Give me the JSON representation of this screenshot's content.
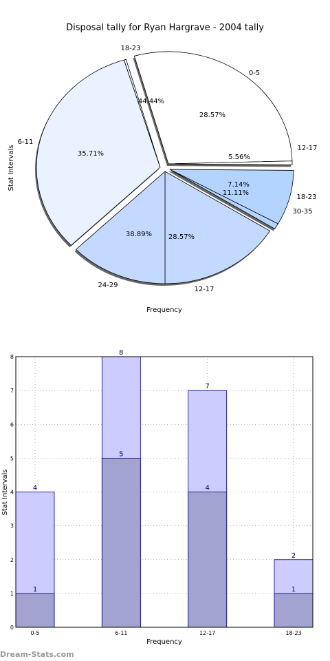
{
  "watermark": "Dream-Stats.com",
  "chart_data": [
    {
      "type": "pie",
      "title": "Disposal tally for Ryan Hargrave - 2004 tally",
      "xlabel": "Frequency",
      "ylabel": "Stat Intervals",
      "rings": [
        {
          "name": "outer",
          "slices": [
            {
              "label": "0-5",
              "percent": "28.57%",
              "value": 28.57,
              "color": "#ffffff"
            },
            {
              "label": "12-17",
              "percent": "5.56%",
              "value": 5.56,
              "color": "#ffffff"
            },
            {
              "label": "18-23",
              "percent": "7.14%",
              "value": 7.14,
              "color": "#b3d4ff"
            },
            {
              "label": "30-35",
              "percent": "11.11%",
              "value": 11.11,
              "color": "#b3d4ff"
            },
            {
              "label": "12-17",
              "percent": "28.57%",
              "value": 28.57,
              "color": "#c4d9ff"
            },
            {
              "label": "24-29",
              "percent": "38.89%",
              "value": 38.89,
              "color": "#c4d9ff"
            },
            {
              "label": "6-11",
              "percent": "35.71%",
              "value": 35.71,
              "color": "#ebf2ff"
            },
            {
              "label": "18-23",
              "percent": "44.44%",
              "value": 44.44,
              "color": "#ebf2ff"
            }
          ]
        }
      ]
    },
    {
      "type": "bar",
      "xlabel": "Frequency",
      "ylabel": "Stat Intervals",
      "categories": [
        "0-5",
        "6-11",
        "12-17",
        "18-23"
      ],
      "ylim": [
        0,
        8
      ],
      "yticks": [
        0,
        1,
        2,
        3,
        4,
        5,
        6,
        7,
        8
      ],
      "grid": true,
      "series": [
        {
          "values": [
            4,
            8,
            7,
            2
          ],
          "color": "#ccccff"
        },
        {
          "values": [
            1,
            5,
            4,
            1
          ],
          "color": "#a3a3d1"
        }
      ]
    }
  ]
}
